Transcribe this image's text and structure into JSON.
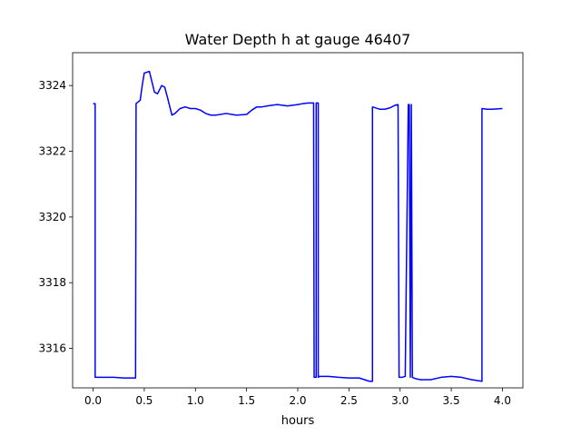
{
  "chart_data": {
    "type": "line",
    "title": "Water Depth h at gauge 46407",
    "xlabel": "hours",
    "ylabel": "",
    "xlim": [
      -0.2,
      4.2
    ],
    "ylim": [
      3314.8,
      3325.0
    ],
    "xticks": [
      0.0,
      0.5,
      1.0,
      1.5,
      2.0,
      2.5,
      3.0,
      3.5,
      4.0
    ],
    "xtick_labels": [
      "0.0",
      "0.5",
      "1.0",
      "1.5",
      "2.0",
      "2.5",
      "3.0",
      "3.5",
      "4.0"
    ],
    "yticks": [
      3316,
      3318,
      3320,
      3322,
      3324
    ],
    "ytick_labels": [
      "3316",
      "3318",
      "3320",
      "3322",
      "3324"
    ],
    "grid": false,
    "colors": {
      "line": "#0000ff"
    },
    "series": [
      {
        "x": [
          0.0,
          0.02,
          0.02,
          0.1,
          0.2,
          0.3,
          0.4,
          0.415,
          0.42,
          0.46,
          0.48,
          0.5,
          0.55,
          0.6,
          0.63,
          0.67,
          0.7,
          0.73,
          0.77,
          0.8,
          0.85,
          0.9,
          0.95,
          1.0,
          1.05,
          1.1,
          1.15,
          1.2,
          1.3,
          1.4,
          1.5,
          1.55,
          1.6,
          1.65,
          1.7,
          1.8,
          1.9,
          2.0,
          2.05,
          2.1,
          2.155,
          2.16,
          2.18,
          2.18,
          2.2,
          2.2,
          2.21,
          2.3,
          2.4,
          2.5,
          2.6,
          2.7,
          2.73,
          2.73,
          2.8,
          2.85,
          2.9,
          2.95,
          2.98,
          2.99,
          3.0,
          3.02,
          3.05,
          3.08,
          3.09,
          3.1,
          3.11,
          3.12,
          3.15,
          3.2,
          3.3,
          3.4,
          3.5,
          3.6,
          3.7,
          3.8,
          3.8,
          3.85,
          3.9,
          4.0
        ],
        "y": [
          3323.45,
          3323.45,
          3315.12,
          3315.12,
          3315.12,
          3315.1,
          3315.1,
          3315.1,
          3323.45,
          3323.55,
          3324.0,
          3324.38,
          3324.43,
          3323.8,
          3323.75,
          3324.0,
          3323.95,
          3323.6,
          3323.1,
          3323.15,
          3323.3,
          3323.35,
          3323.3,
          3323.3,
          3323.25,
          3323.15,
          3323.1,
          3323.1,
          3323.15,
          3323.1,
          3323.12,
          3323.25,
          3323.35,
          3323.35,
          3323.38,
          3323.42,
          3323.38,
          3323.42,
          3323.45,
          3323.47,
          3323.47,
          3315.12,
          3315.12,
          3323.47,
          3323.47,
          3315.12,
          3315.15,
          3315.15,
          3315.12,
          3315.1,
          3315.1,
          3315.0,
          3315.0,
          3323.35,
          3323.28,
          3323.28,
          3323.32,
          3323.4,
          3323.42,
          3315.12,
          3315.12,
          3315.12,
          3315.15,
          3323.42,
          3323.42,
          3315.12,
          3323.42,
          3315.12,
          3315.08,
          3315.05,
          3315.05,
          3315.12,
          3315.15,
          3315.12,
          3315.05,
          3315.0,
          3323.3,
          3323.28,
          3323.28,
          3323.3
        ]
      }
    ]
  }
}
